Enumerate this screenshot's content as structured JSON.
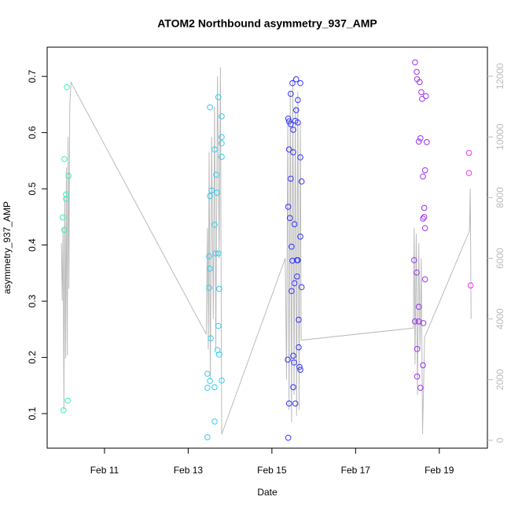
{
  "chart_data": {
    "type": "scatter",
    "title": "ATOM2 Northbound asymmetry_937_AMP",
    "x_label": "Date",
    "y_label": "asymmetry_937_AMP",
    "xlim": [
      9.63,
      20.15
    ],
    "xticks": [
      {
        "value": 11,
        "label": "Feb 11"
      },
      {
        "value": 13,
        "label": "Feb 13"
      },
      {
        "value": 15,
        "label": "Feb 15"
      },
      {
        "value": 17,
        "label": "Feb 17"
      },
      {
        "value": 19,
        "label": "Feb 19"
      }
    ],
    "ylim": [
      0.0385,
      0.752
    ],
    "yticks": [
      0.1,
      0.2,
      0.3,
      0.4,
      0.5,
      0.6,
      0.7
    ],
    "y2lim": [
      -259,
      12959
    ],
    "y2ticks": [
      0,
      2000,
      4000,
      6000,
      8000,
      10000,
      12000
    ],
    "series": [
      {
        "color": "#33eebb",
        "x": [
          10.0,
          10.04,
          10.08,
          10.08,
          10.1,
          10.14,
          10.04,
          10.02,
          10.12
        ],
        "values": [
          0.449,
          0.553,
          0.482,
          0.49,
          0.681,
          0.523,
          0.427,
          0.106,
          0.123
        ]
      },
      {
        "color": "#33ccee",
        "x": [
          13.52,
          13.72,
          13.8,
          13.8,
          13.8,
          13.8,
          13.63,
          13.67,
          13.56,
          13.52,
          13.69,
          13.63,
          13.65,
          13.72,
          13.5,
          13.52,
          13.5,
          13.74,
          13.72,
          13.54,
          13.7,
          13.74,
          13.46,
          13.52,
          13.8,
          13.46,
          13.63,
          13.63,
          13.46
        ],
        "values": [
          0.645,
          0.663,
          0.629,
          0.592,
          0.581,
          0.557,
          0.57,
          0.525,
          0.497,
          0.487,
          0.493,
          0.436,
          0.385,
          0.385,
          0.38,
          0.358,
          0.324,
          0.322,
          0.256,
          0.234,
          0.213,
          0.205,
          0.171,
          0.158,
          0.159,
          0.146,
          0.147,
          0.086,
          0.058
        ]
      },
      {
        "color": "#3333ff",
        "x": [
          15.58,
          15.49,
          15.68,
          15.45,
          15.62,
          15.58,
          15.39,
          15.41,
          15.56,
          15.62,
          15.45,
          15.51,
          15.41,
          15.51,
          15.68,
          15.45,
          15.71,
          15.39,
          15.43,
          15.54,
          15.68,
          15.47,
          15.49,
          15.6,
          15.62,
          15.6,
          15.54,
          15.71,
          15.47,
          15.64,
          15.64,
          15.51,
          15.38,
          15.53,
          15.66,
          15.68,
          15.51,
          15.41,
          15.56,
          15.39
        ],
        "values": [
          0.695,
          0.688,
          0.688,
          0.669,
          0.658,
          0.64,
          0.625,
          0.62,
          0.621,
          0.618,
          0.615,
          0.605,
          0.57,
          0.565,
          0.556,
          0.518,
          0.513,
          0.468,
          0.448,
          0.437,
          0.415,
          0.397,
          0.372,
          0.373,
          0.373,
          0.344,
          0.332,
          0.325,
          0.318,
          0.267,
          0.218,
          0.203,
          0.196,
          0.191,
          0.183,
          0.178,
          0.147,
          0.118,
          0.118,
          0.057
        ]
      },
      {
        "color": "#9933ee",
        "x": [
          18.42,
          18.46,
          18.47,
          18.53,
          18.57,
          18.68,
          18.59,
          18.55,
          18.51,
          18.7,
          18.66,
          18.61,
          18.64,
          18.64,
          18.61,
          18.66,
          18.4,
          18.46,
          18.66,
          18.51,
          18.42,
          18.51,
          18.62,
          18.47,
          18.61,
          18.47,
          18.55
        ],
        "values": [
          0.725,
          0.708,
          0.695,
          0.69,
          0.672,
          0.665,
          0.66,
          0.59,
          0.584,
          0.583,
          0.533,
          0.522,
          0.466,
          0.45,
          0.447,
          0.43,
          0.373,
          0.351,
          0.339,
          0.29,
          0.264,
          0.264,
          0.261,
          0.215,
          0.186,
          0.166,
          0.146
        ]
      },
      {
        "color": "#ee33ee",
        "x": [
          19.71,
          19.71,
          19.75
        ],
        "values": [
          0.564,
          0.528,
          0.328
        ]
      },
      {
        "type": "line",
        "axis": "y2",
        "color": "#bbbbbb",
        "x": [
          9.97,
          9.99,
          10.01,
          10.03,
          10.05,
          10.07,
          10.09,
          10.11,
          10.13,
          10.15,
          10.17,
          10.2,
          13.43,
          13.46,
          13.48,
          13.5,
          13.53,
          13.56,
          13.6,
          13.63,
          13.66,
          13.7,
          13.74,
          13.77,
          13.8,
          15.32,
          15.35,
          15.38,
          15.41,
          15.44,
          15.47,
          15.5,
          15.53,
          15.56,
          15.59,
          15.62,
          15.65,
          15.68,
          15.7,
          18.38,
          18.4,
          18.42,
          18.45,
          18.48,
          18.51,
          18.54,
          18.57,
          18.6,
          18.65,
          19.72,
          19.74,
          19.76
        ],
        "values": [
          6500,
          4600,
          7000,
          1000,
          8000,
          2700,
          9000,
          2800,
          10000,
          5000,
          11000,
          11800,
          3500,
          7000,
          3000,
          9500,
          2000,
          10000,
          4000,
          11000,
          3000,
          12000,
          6000,
          12300,
          200,
          6000,
          2000,
          10500,
          1000,
          11500,
          600,
          11900,
          1500,
          11000,
          800,
          11500,
          1000,
          10500,
          3300,
          3700,
          7000,
          2500,
          6800,
          1500,
          6500,
          3000,
          6000,
          200,
          3400,
          6900,
          8300,
          4000
        ]
      }
    ]
  }
}
